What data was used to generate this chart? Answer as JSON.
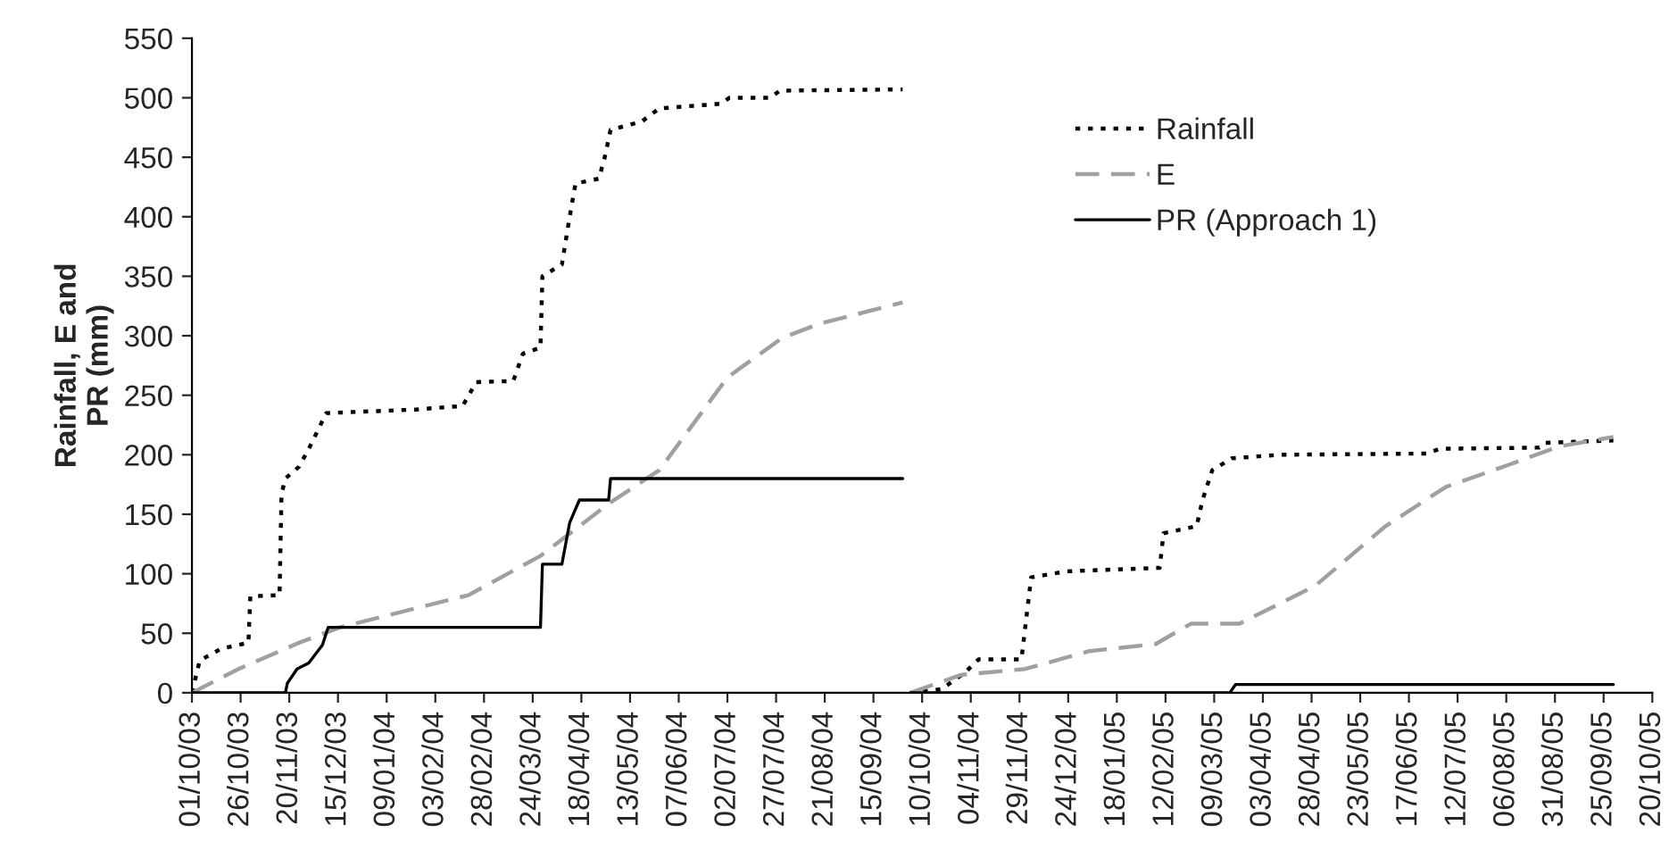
{
  "chart_data": {
    "type": "line",
    "ylabel": "Rainfall, E and\nPR (mm)",
    "xlim": [
      "2003-10-01",
      "2005-10-20"
    ],
    "xticks": [
      {
        "value": "2003-10-01",
        "label": "01/10/03"
      },
      {
        "value": "2003-10-26",
        "label": "26/10/03"
      },
      {
        "value": "2003-11-20",
        "label": "20/11/03"
      },
      {
        "value": "2003-12-15",
        "label": "15/12/03"
      },
      {
        "value": "2004-01-09",
        "label": "09/01/04"
      },
      {
        "value": "2004-02-03",
        "label": "03/02/04"
      },
      {
        "value": "2004-02-28",
        "label": "28/02/04"
      },
      {
        "value": "2004-03-24",
        "label": "24/03/04"
      },
      {
        "value": "2004-04-18",
        "label": "18/04/04"
      },
      {
        "value": "2004-05-13",
        "label": "13/05/04"
      },
      {
        "value": "2004-06-07",
        "label": "07/06/04"
      },
      {
        "value": "2004-07-02",
        "label": "02/07/04"
      },
      {
        "value": "2004-07-27",
        "label": "27/07/04"
      },
      {
        "value": "2004-08-21",
        "label": "21/08/04"
      },
      {
        "value": "2004-09-15",
        "label": "15/09/04"
      },
      {
        "value": "2004-10-10",
        "label": "10/10/04"
      },
      {
        "value": "2004-11-04",
        "label": "04/11/04"
      },
      {
        "value": "2004-11-29",
        "label": "29/11/04"
      },
      {
        "value": "2004-12-24",
        "label": "24/12/04"
      },
      {
        "value": "2005-01-18",
        "label": "18/01/05"
      },
      {
        "value": "2005-02-12",
        "label": "12/02/05"
      },
      {
        "value": "2005-03-09",
        "label": "09/03/05"
      },
      {
        "value": "2005-04-03",
        "label": "03/04/05"
      },
      {
        "value": "2005-04-28",
        "label": "28/04/05"
      },
      {
        "value": "2005-05-23",
        "label": "23/05/05"
      },
      {
        "value": "2005-06-17",
        "label": "17/06/05"
      },
      {
        "value": "2005-07-12",
        "label": "12/07/05"
      },
      {
        "value": "2005-08-06",
        "label": "06/08/05"
      },
      {
        "value": "2005-08-31",
        "label": "31/08/05"
      },
      {
        "value": "2005-09-25",
        "label": "25/09/05"
      },
      {
        "value": "2005-10-20",
        "label": "20/10/05"
      }
    ],
    "ylim": [
      0,
      550
    ],
    "yticks": [
      0,
      50,
      100,
      150,
      200,
      250,
      300,
      350,
      400,
      450,
      500,
      550
    ],
    "grid": false,
    "legend": "top right",
    "marker": "none",
    "series": [
      {
        "name": "Rainfall",
        "color": "#000000",
        "line_style": "dotted",
        "x": [
          "2003-10-01",
          "2003-10-05",
          "2003-10-16",
          "2003-10-30",
          "2003-10-31",
          "2003-11-15",
          "2003-11-16",
          "2003-11-18",
          "2003-11-25",
          "2003-11-30",
          "2003-12-09",
          "2004-01-24",
          "2004-02-17",
          "2004-02-24",
          "2004-03-14",
          "2004-03-19",
          "2004-03-28",
          "2004-03-29",
          "2004-04-08",
          "2004-04-12",
          "2004-04-15",
          "2004-04-27",
          "2004-04-30",
          "2004-05-03",
          "2004-05-19",
          "2004-05-28",
          "2004-06-29",
          "2004-07-03",
          "2004-07-24",
          "2004-07-29",
          "2004-09-30",
          "2004-10-02",
          "2004-10-04",
          "2004-10-20",
          "2004-11-01",
          "2004-11-08",
          "2004-11-30",
          "2004-12-05",
          "2004-12-23",
          "2005-02-09",
          "2005-02-11",
          "2005-02-28",
          "2005-03-03",
          "2005-03-08",
          "2005-03-18",
          "2005-04-12",
          "2005-06-26",
          "2005-07-03",
          "2005-08-23",
          "2005-08-26",
          "2005-09-30"
        ],
        "values": [
          0,
          27,
          37,
          42,
          81,
          82,
          167,
          180,
          190,
          205,
          235,
          238,
          241,
          261,
          262,
          285,
          290,
          350,
          360,
          400,
          428,
          432,
          450,
          473,
          480,
          491,
          495,
          500,
          500,
          506,
          507,
          null,
          0,
          3,
          17,
          28,
          28,
          97,
          102,
          105,
          134,
          140,
          162,
          187,
          197,
          200,
          201,
          205,
          206,
          210,
          212
        ]
      },
      {
        "name": "E",
        "color": "#a0a0a0",
        "line_style": "dashed",
        "x": [
          "2003-10-01",
          "2003-10-25",
          "2003-11-25",
          "2003-12-16",
          "2004-02-20",
          "2004-03-28",
          "2004-05-03",
          "2004-05-28",
          "2004-07-02",
          "2004-07-30",
          "2004-08-18",
          "2004-09-30",
          "2004-10-02",
          "2004-10-04",
          "2004-10-30",
          "2004-12-02",
          "2005-01-04",
          "2005-02-07",
          "2005-02-25",
          "2005-03-22",
          "2005-04-30",
          "2005-06-05",
          "2005-07-06",
          "2005-08-08",
          "2005-09-02",
          "2005-09-30"
        ],
        "values": [
          0,
          20,
          42,
          55,
          82,
          115,
          160,
          187,
          265,
          298,
          310,
          328,
          null,
          0,
          15,
          20,
          35,
          41,
          58,
          58,
          90,
          140,
          173,
          192,
          207,
          215
        ]
      },
      {
        "name": "PR (Approach 1)",
        "color": "#000000",
        "line_style": "solid",
        "x": [
          "2003-10-01",
          "2003-11-18",
          "2003-11-19",
          "2003-11-24",
          "2003-11-30",
          "2003-12-07",
          "2003-12-10",
          "2004-03-28",
          "2004-03-29",
          "2004-04-08",
          "2004-04-12",
          "2004-04-17",
          "2004-05-02",
          "2004-05-03",
          "2004-09-30",
          "2004-10-02",
          "2004-10-04",
          "2005-03-17",
          "2005-03-20",
          "2005-09-30"
        ],
        "values": [
          0,
          0,
          8,
          20,
          25,
          40,
          55,
          55,
          108,
          108,
          143,
          162,
          162,
          180,
          180,
          null,
          0,
          0,
          7,
          7
        ]
      }
    ]
  }
}
